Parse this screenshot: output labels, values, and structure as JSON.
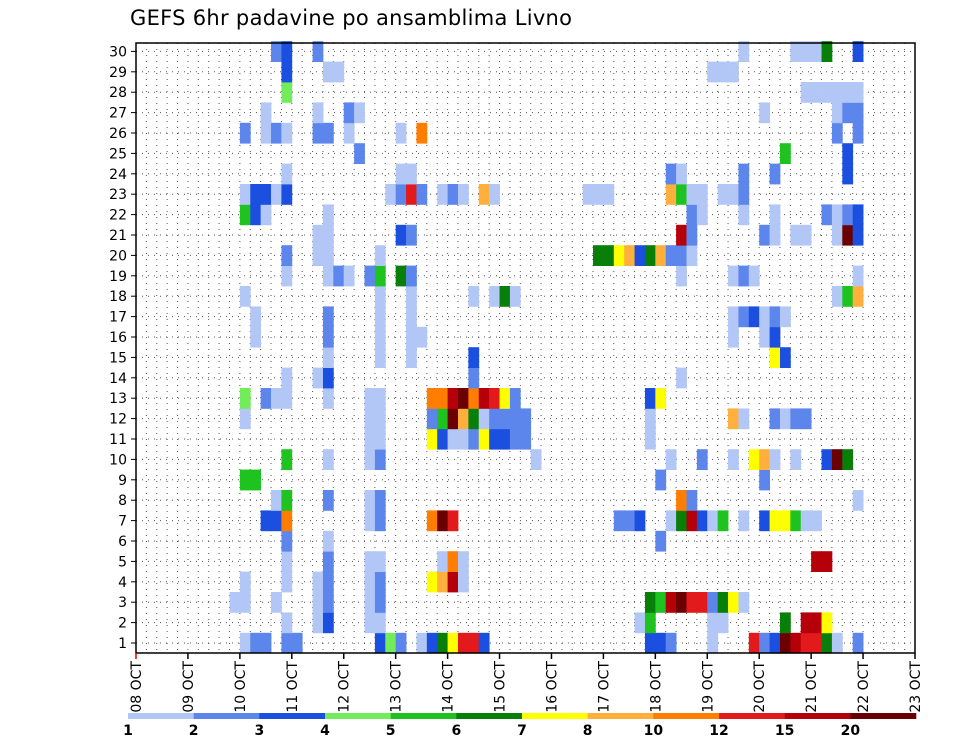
{
  "title": "GEFS 6hr padavine po ansamblima Livno",
  "chart_data": {
    "type": "heatmap",
    "title": "GEFS 6hr padavine po ansamblima Livno",
    "x_tick_labels": [
      "08 OCT",
      "09 OCT",
      "10 OCT",
      "11 OCT",
      "12 OCT",
      "13 OCT",
      "14 OCT",
      "15 OCT",
      "16 OCT",
      "17 OCT",
      "18 OCT",
      "19 OCT",
      "20 OCT",
      "21 OCT",
      "22 OCT",
      "23 OCT"
    ],
    "y_tick_labels": [
      "1",
      "2",
      "3",
      "4",
      "5",
      "6",
      "7",
      "8",
      "9",
      "10",
      "11",
      "12",
      "13",
      "14",
      "15",
      "16",
      "17",
      "18",
      "19",
      "20",
      "21",
      "22",
      "23",
      "24",
      "25",
      "26",
      "27",
      "28",
      "29",
      "30"
    ],
    "xlim": [
      0,
      60
    ],
    "ylim": [
      0,
      30
    ],
    "grid": true,
    "colorbar": {
      "labels": [
        "1",
        "2",
        "3",
        "4",
        "5",
        "6",
        "7",
        "8",
        "10",
        "12",
        "15",
        "20"
      ],
      "colors": [
        "#b3c7f7",
        "#5d86ec",
        "#1b4fe0",
        "#72ec5b",
        "#1fc31f",
        "#087f08",
        "#ffff00",
        "#ffb03c",
        "#ff7d00",
        "#e31a1c",
        "#b5000a",
        "#6b0000"
      ]
    },
    "cells": [
      [
        1,
        11,
        0
      ],
      [
        1,
        12,
        1
      ],
      [
        1,
        13,
        1
      ],
      [
        1,
        15,
        1
      ],
      [
        1,
        16,
        1
      ],
      [
        1,
        24,
        2
      ],
      [
        1,
        25,
        3
      ],
      [
        1,
        26,
        1
      ],
      [
        1,
        28,
        0
      ],
      [
        1,
        29,
        2
      ],
      [
        1,
        30,
        5
      ],
      [
        1,
        31,
        6
      ],
      [
        1,
        32,
        9
      ],
      [
        1,
        33,
        9
      ],
      [
        1,
        34,
        2
      ],
      [
        1,
        50,
        2
      ],
      [
        1,
        51,
        2
      ],
      [
        1,
        52,
        1
      ],
      [
        1,
        56,
        0
      ],
      [
        1,
        60,
        9
      ],
      [
        1,
        61,
        1
      ],
      [
        1,
        62,
        2
      ],
      [
        1,
        63,
        11
      ],
      [
        1,
        64,
        10
      ],
      [
        1,
        65,
        9
      ],
      [
        1,
        66,
        9
      ],
      [
        1,
        67,
        5
      ],
      [
        1,
        68,
        0
      ],
      [
        1,
        70,
        1
      ],
      [
        2,
        15,
        0
      ],
      [
        2,
        18,
        0
      ],
      [
        2,
        19,
        2
      ],
      [
        2,
        23,
        0
      ],
      [
        2,
        24,
        0
      ],
      [
        2,
        49,
        0
      ],
      [
        2,
        50,
        4
      ],
      [
        2,
        56,
        0
      ],
      [
        2,
        57,
        0
      ],
      [
        2,
        63,
        5
      ],
      [
        2,
        65,
        10
      ],
      [
        2,
        66,
        10
      ],
      [
        2,
        67,
        6
      ],
      [
        3,
        10,
        0
      ],
      [
        3,
        11,
        0
      ],
      [
        3,
        14,
        0
      ],
      [
        3,
        18,
        0
      ],
      [
        3,
        19,
        1
      ],
      [
        3,
        23,
        0
      ],
      [
        3,
        24,
        1
      ],
      [
        3,
        50,
        5
      ],
      [
        3,
        51,
        4
      ],
      [
        3,
        52,
        10
      ],
      [
        3,
        53,
        11
      ],
      [
        3,
        54,
        9
      ],
      [
        3,
        55,
        9
      ],
      [
        3,
        56,
        1
      ],
      [
        3,
        57,
        5
      ],
      [
        3,
        58,
        6
      ],
      [
        3,
        59,
        0
      ],
      [
        4,
        11,
        0
      ],
      [
        4,
        15,
        0
      ],
      [
        4,
        18,
        0
      ],
      [
        4,
        19,
        1
      ],
      [
        4,
        23,
        0
      ],
      [
        4,
        24,
        1
      ],
      [
        4,
        29,
        6
      ],
      [
        4,
        30,
        7
      ],
      [
        4,
        31,
        10
      ],
      [
        4,
        32,
        0
      ],
      [
        5,
        15,
        0
      ],
      [
        5,
        19,
        1
      ],
      [
        5,
        23,
        0
      ],
      [
        5,
        24,
        0
      ],
      [
        5,
        30,
        0
      ],
      [
        5,
        31,
        8
      ],
      [
        5,
        32,
        0
      ],
      [
        5,
        66,
        10
      ],
      [
        5,
        67,
        10
      ],
      [
        6,
        15,
        1
      ],
      [
        6,
        19,
        0
      ],
      [
        6,
        51,
        1
      ],
      [
        7,
        13,
        2
      ],
      [
        7,
        14,
        2
      ],
      [
        7,
        15,
        8
      ],
      [
        7,
        23,
        0
      ],
      [
        7,
        24,
        1
      ],
      [
        7,
        29,
        8
      ],
      [
        7,
        30,
        11
      ],
      [
        7,
        31,
        9
      ],
      [
        7,
        47,
        1
      ],
      [
        7,
        48,
        1
      ],
      [
        7,
        49,
        2
      ],
      [
        7,
        52,
        0
      ],
      [
        7,
        53,
        5
      ],
      [
        7,
        54,
        10
      ],
      [
        7,
        55,
        2
      ],
      [
        7,
        56,
        0
      ],
      [
        7,
        57,
        4
      ],
      [
        7,
        59,
        0
      ],
      [
        7,
        61,
        2
      ],
      [
        7,
        62,
        6
      ],
      [
        7,
        63,
        6
      ],
      [
        7,
        64,
        4
      ],
      [
        7,
        65,
        0
      ],
      [
        7,
        66,
        0
      ],
      [
        8,
        14,
        0
      ],
      [
        8,
        15,
        4
      ],
      [
        8,
        19,
        1
      ],
      [
        8,
        23,
        0
      ],
      [
        8,
        24,
        1
      ],
      [
        8,
        53,
        8
      ],
      [
        8,
        54,
        1
      ],
      [
        8,
        70,
        0
      ],
      [
        9,
        11,
        4
      ],
      [
        9,
        12,
        4
      ],
      [
        9,
        51,
        1
      ],
      [
        9,
        61,
        1
      ],
      [
        10,
        15,
        4
      ],
      [
        10,
        19,
        0
      ],
      [
        10,
        23,
        0
      ],
      [
        10,
        24,
        1
      ],
      [
        10,
        39,
        0
      ],
      [
        10,
        52,
        0
      ],
      [
        10,
        55,
        1
      ],
      [
        10,
        58,
        0
      ],
      [
        10,
        60,
        6
      ],
      [
        10,
        61,
        7
      ],
      [
        10,
        62,
        0
      ],
      [
        10,
        64,
        0
      ],
      [
        10,
        67,
        2
      ],
      [
        10,
        68,
        11
      ],
      [
        10,
        69,
        5
      ],
      [
        11,
        23,
        0
      ],
      [
        11,
        24,
        0
      ],
      [
        11,
        29,
        6
      ],
      [
        11,
        30,
        2
      ],
      [
        11,
        31,
        0
      ],
      [
        11,
        32,
        0
      ],
      [
        11,
        33,
        1
      ],
      [
        11,
        34,
        6
      ],
      [
        11,
        35,
        2
      ],
      [
        11,
        36,
        2
      ],
      [
        11,
        37,
        1
      ],
      [
        11,
        38,
        1
      ],
      [
        11,
        50,
        0
      ],
      [
        12,
        11,
        0
      ],
      [
        12,
        23,
        0
      ],
      [
        12,
        24,
        0
      ],
      [
        12,
        29,
        1
      ],
      [
        12,
        30,
        4
      ],
      [
        12,
        31,
        11
      ],
      [
        12,
        32,
        7
      ],
      [
        12,
        33,
        5
      ],
      [
        12,
        34,
        0
      ],
      [
        12,
        35,
        1
      ],
      [
        12,
        36,
        1
      ],
      [
        12,
        37,
        1
      ],
      [
        12,
        38,
        1
      ],
      [
        12,
        50,
        0
      ],
      [
        12,
        58,
        7
      ],
      [
        12,
        59,
        0
      ],
      [
        12,
        62,
        1
      ],
      [
        12,
        63,
        0
      ],
      [
        12,
        64,
        1
      ],
      [
        12,
        65,
        1
      ],
      [
        13,
        11,
        3
      ],
      [
        13,
        13,
        1
      ],
      [
        13,
        14,
        0
      ],
      [
        13,
        15,
        0
      ],
      [
        13,
        19,
        0
      ],
      [
        13,
        23,
        0
      ],
      [
        13,
        24,
        0
      ],
      [
        13,
        29,
        8
      ],
      [
        13,
        30,
        8
      ],
      [
        13,
        31,
        10
      ],
      [
        13,
        32,
        11
      ],
      [
        13,
        33,
        8
      ],
      [
        13,
        34,
        10
      ],
      [
        13,
        35,
        9
      ],
      [
        13,
        36,
        6
      ],
      [
        13,
        37,
        1
      ],
      [
        13,
        50,
        2
      ],
      [
        13,
        51,
        6
      ],
      [
        14,
        15,
        0
      ],
      [
        14,
        18,
        0
      ],
      [
        14,
        19,
        2
      ],
      [
        14,
        33,
        1
      ],
      [
        14,
        53,
        0
      ],
      [
        15,
        19,
        0
      ],
      [
        15,
        24,
        0
      ],
      [
        15,
        27,
        0
      ],
      [
        15,
        33,
        2
      ],
      [
        15,
        62,
        6
      ],
      [
        15,
        63,
        2
      ],
      [
        16,
        12,
        0
      ],
      [
        16,
        19,
        1
      ],
      [
        16,
        24,
        0
      ],
      [
        16,
        27,
        0
      ],
      [
        16,
        28,
        0
      ],
      [
        16,
        58,
        0
      ],
      [
        16,
        61,
        0
      ],
      [
        16,
        62,
        2
      ],
      [
        17,
        12,
        0
      ],
      [
        17,
        19,
        1
      ],
      [
        17,
        24,
        0
      ],
      [
        17,
        27,
        0
      ],
      [
        17,
        58,
        0
      ],
      [
        17,
        59,
        1
      ],
      [
        17,
        60,
        2
      ],
      [
        17,
        61,
        0
      ],
      [
        17,
        62,
        1
      ],
      [
        17,
        63,
        0
      ],
      [
        18,
        11,
        0
      ],
      [
        18,
        24,
        0
      ],
      [
        18,
        27,
        0
      ],
      [
        18,
        33,
        0
      ],
      [
        18,
        35,
        0
      ],
      [
        18,
        36,
        5
      ],
      [
        18,
        37,
        0
      ],
      [
        18,
        68,
        0
      ],
      [
        18,
        69,
        4
      ],
      [
        18,
        70,
        7
      ],
      [
        19,
        15,
        0
      ],
      [
        19,
        19,
        0
      ],
      [
        19,
        20,
        1
      ],
      [
        19,
        21,
        0
      ],
      [
        19,
        23,
        1
      ],
      [
        19,
        24,
        4
      ],
      [
        19,
        26,
        5
      ],
      [
        19,
        27,
        1
      ],
      [
        19,
        53,
        0
      ],
      [
        19,
        58,
        0
      ],
      [
        19,
        59,
        1
      ],
      [
        19,
        60,
        0
      ],
      [
        19,
        70,
        0
      ],
      [
        20,
        15,
        1
      ],
      [
        20,
        18,
        0
      ],
      [
        20,
        19,
        0
      ],
      [
        20,
        24,
        0
      ],
      [
        20,
        45,
        5
      ],
      [
        20,
        46,
        5
      ],
      [
        20,
        47,
        6
      ],
      [
        20,
        48,
        7
      ],
      [
        20,
        49,
        2
      ],
      [
        20,
        50,
        5
      ],
      [
        20,
        51,
        7
      ],
      [
        20,
        52,
        1
      ],
      [
        20,
        53,
        1
      ],
      [
        20,
        54,
        0
      ],
      [
        21,
        18,
        0
      ],
      [
        21,
        19,
        0
      ],
      [
        21,
        26,
        2
      ],
      [
        21,
        27,
        1
      ],
      [
        21,
        53,
        10
      ],
      [
        21,
        54,
        1
      ],
      [
        21,
        61,
        1
      ],
      [
        21,
        62,
        0
      ],
      [
        21,
        64,
        0
      ],
      [
        21,
        65,
        0
      ],
      [
        21,
        68,
        0
      ],
      [
        21,
        69,
        11
      ],
      [
        21,
        70,
        2
      ],
      [
        22,
        11,
        4
      ],
      [
        22,
        12,
        2
      ],
      [
        22,
        13,
        0
      ],
      [
        22,
        19,
        0
      ],
      [
        22,
        54,
        1
      ],
      [
        22,
        55,
        0
      ],
      [
        22,
        59,
        0
      ],
      [
        22,
        62,
        0
      ],
      [
        22,
        67,
        1
      ],
      [
        22,
        68,
        0
      ],
      [
        22,
        69,
        1
      ],
      [
        22,
        70,
        2
      ],
      [
        23,
        11,
        0
      ],
      [
        23,
        12,
        2
      ],
      [
        23,
        13,
        2
      ],
      [
        23,
        14,
        0
      ],
      [
        23,
        15,
        2
      ],
      [
        23,
        25,
        0
      ],
      [
        23,
        26,
        1
      ],
      [
        23,
        27,
        9
      ],
      [
        23,
        28,
        1
      ],
      [
        23,
        30,
        0
      ],
      [
        23,
        31,
        1
      ],
      [
        23,
        32,
        0
      ],
      [
        23,
        34,
        7
      ],
      [
        23,
        35,
        0
      ],
      [
        23,
        44,
        0
      ],
      [
        23,
        45,
        0
      ],
      [
        23,
        46,
        0
      ],
      [
        23,
        52,
        7
      ],
      [
        23,
        53,
        4
      ],
      [
        23,
        54,
        0
      ],
      [
        23,
        55,
        0
      ],
      [
        23,
        57,
        0
      ],
      [
        23,
        58,
        0
      ],
      [
        23,
        59,
        1
      ],
      [
        24,
        15,
        0
      ],
      [
        24,
        26,
        0
      ],
      [
        24,
        27,
        0
      ],
      [
        24,
        52,
        1
      ],
      [
        24,
        53,
        0
      ],
      [
        24,
        59,
        1
      ],
      [
        24,
        62,
        1
      ],
      [
        24,
        69,
        2
      ],
      [
        25,
        22,
        1
      ],
      [
        25,
        63,
        4
      ],
      [
        25,
        69,
        2
      ],
      [
        26,
        11,
        1
      ],
      [
        26,
        13,
        0
      ],
      [
        26,
        14,
        1
      ],
      [
        26,
        15,
        0
      ],
      [
        26,
        18,
        1
      ],
      [
        26,
        19,
        1
      ],
      [
        26,
        21,
        0
      ],
      [
        26,
        26,
        0
      ],
      [
        26,
        28,
        8
      ],
      [
        26,
        68,
        1
      ],
      [
        26,
        70,
        1
      ],
      [
        27,
        13,
        0
      ],
      [
        27,
        18,
        0
      ],
      [
        27,
        21,
        1
      ],
      [
        27,
        22,
        0
      ],
      [
        27,
        61,
        0
      ],
      [
        27,
        68,
        0
      ],
      [
        27,
        69,
        1
      ],
      [
        27,
        70,
        1
      ],
      [
        28,
        15,
        3
      ],
      [
        28,
        65,
        0
      ],
      [
        28,
        66,
        0
      ],
      [
        28,
        67,
        0
      ],
      [
        28,
        68,
        0
      ],
      [
        28,
        69,
        0
      ],
      [
        28,
        70,
        0
      ],
      [
        29,
        15,
        2
      ],
      [
        29,
        19,
        0
      ],
      [
        29,
        20,
        0
      ],
      [
        29,
        56,
        0
      ],
      [
        29,
        57,
        0
      ],
      [
        29,
        58,
        0
      ],
      [
        30,
        14,
        1
      ],
      [
        30,
        15,
        2
      ],
      [
        30,
        18,
        1
      ],
      [
        30,
        59,
        0
      ],
      [
        30,
        64,
        0
      ],
      [
        30,
        65,
        0
      ],
      [
        30,
        66,
        0
      ],
      [
        30,
        67,
        5
      ],
      [
        30,
        70,
        2
      ]
    ]
  }
}
